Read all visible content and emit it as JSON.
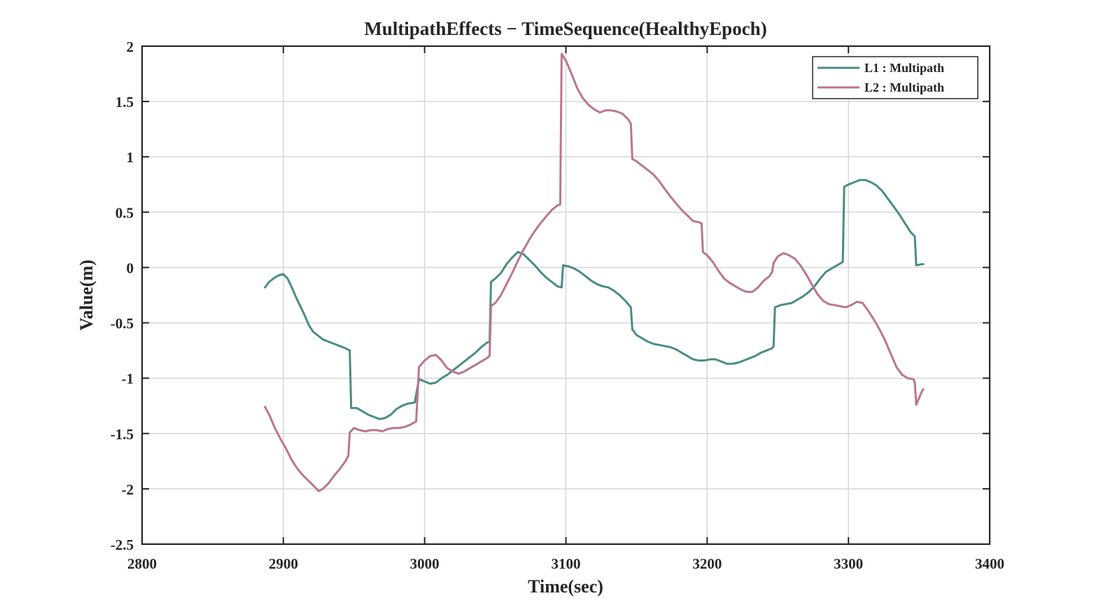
{
  "chart_data": {
    "type": "line",
    "title": "MultipathEffects − TimeSequence(HealthyEpoch)",
    "xlabel": "Time(sec)",
    "ylabel": "Value(m)",
    "xlim": [
      2800,
      3400
    ],
    "ylim": [
      -2.5,
      2
    ],
    "xticks": [
      2800,
      2900,
      3000,
      3100,
      3200,
      3300,
      3400
    ],
    "yticks": [
      -2.5,
      -2,
      -1.5,
      -1,
      -0.5,
      0,
      0.5,
      1,
      1.5,
      2
    ],
    "xtick_labels": [
      "2800",
      "2900",
      "3000",
      "3100",
      "3200",
      "3300",
      "3400"
    ],
    "ytick_labels": [
      "-2.5",
      "-2",
      "-1.5",
      "-1",
      "-0.5",
      "0",
      "0.5",
      "1",
      "1.5",
      "2"
    ],
    "grid": true,
    "legend_position": "top-right",
    "series": [
      {
        "name": "L1 : Multipath",
        "color": "#4a8c86",
        "points": [
          [
            2887,
            -0.18
          ],
          [
            2890,
            -0.13
          ],
          [
            2894,
            -0.09
          ],
          [
            2897,
            -0.07
          ],
          [
            2900,
            -0.06
          ],
          [
            2903,
            -0.1
          ],
          [
            2906,
            -0.18
          ],
          [
            2909,
            -0.27
          ],
          [
            2912,
            -0.35
          ],
          [
            2915,
            -0.43
          ],
          [
            2918,
            -0.52
          ],
          [
            2921,
            -0.58
          ],
          [
            2925,
            -0.62
          ],
          [
            2928,
            -0.65
          ],
          [
            2932,
            -0.67
          ],
          [
            2936,
            -0.69
          ],
          [
            2940,
            -0.71
          ],
          [
            2944,
            -0.73
          ],
          [
            2947,
            -0.75
          ],
          [
            2948,
            -1.27
          ],
          [
            2952,
            -1.27
          ],
          [
            2956,
            -1.3
          ],
          [
            2960,
            -1.33
          ],
          [
            2964,
            -1.35
          ],
          [
            2968,
            -1.37
          ],
          [
            2972,
            -1.36
          ],
          [
            2976,
            -1.33
          ],
          [
            2980,
            -1.28
          ],
          [
            2984,
            -1.25
          ],
          [
            2988,
            -1.23
          ],
          [
            2993,
            -1.22
          ],
          [
            2996,
            -1.01
          ],
          [
            3000,
            -1.03
          ],
          [
            3004,
            -1.05
          ],
          [
            3008,
            -1.04
          ],
          [
            3012,
            -1.0
          ],
          [
            3016,
            -0.97
          ],
          [
            3020,
            -0.93
          ],
          [
            3024,
            -0.89
          ],
          [
            3028,
            -0.85
          ],
          [
            3032,
            -0.81
          ],
          [
            3036,
            -0.77
          ],
          [
            3040,
            -0.72
          ],
          [
            3044,
            -0.68
          ],
          [
            3046,
            -0.67
          ],
          [
            3047,
            -0.13
          ],
          [
            3050,
            -0.1
          ],
          [
            3054,
            -0.05
          ],
          [
            3058,
            0.03
          ],
          [
            3062,
            0.09
          ],
          [
            3066,
            0.14
          ],
          [
            3070,
            0.12
          ],
          [
            3074,
            0.07
          ],
          [
            3078,
            0.02
          ],
          [
            3082,
            -0.04
          ],
          [
            3086,
            -0.09
          ],
          [
            3090,
            -0.13
          ],
          [
            3094,
            -0.17
          ],
          [
            3097,
            -0.18
          ],
          [
            3098,
            0.02
          ],
          [
            3102,
            0.01
          ],
          [
            3106,
            -0.01
          ],
          [
            3110,
            -0.04
          ],
          [
            3114,
            -0.08
          ],
          [
            3118,
            -0.12
          ],
          [
            3122,
            -0.15
          ],
          [
            3126,
            -0.17
          ],
          [
            3130,
            -0.18
          ],
          [
            3134,
            -0.21
          ],
          [
            3138,
            -0.25
          ],
          [
            3142,
            -0.3
          ],
          [
            3146,
            -0.36
          ],
          [
            3147,
            -0.56
          ],
          [
            3150,
            -0.61
          ],
          [
            3154,
            -0.64
          ],
          [
            3158,
            -0.67
          ],
          [
            3162,
            -0.69
          ],
          [
            3166,
            -0.7
          ],
          [
            3170,
            -0.71
          ],
          [
            3174,
            -0.72
          ],
          [
            3178,
            -0.74
          ],
          [
            3182,
            -0.77
          ],
          [
            3186,
            -0.8
          ],
          [
            3190,
            -0.83
          ],
          [
            3194,
            -0.84
          ],
          [
            3198,
            -0.84
          ],
          [
            3202,
            -0.83
          ],
          [
            3206,
            -0.83
          ],
          [
            3210,
            -0.85
          ],
          [
            3214,
            -0.87
          ],
          [
            3218,
            -0.87
          ],
          [
            3222,
            -0.86
          ],
          [
            3226,
            -0.84
          ],
          [
            3230,
            -0.82
          ],
          [
            3234,
            -0.8
          ],
          [
            3238,
            -0.77
          ],
          [
            3242,
            -0.75
          ],
          [
            3246,
            -0.73
          ],
          [
            3247,
            -0.71
          ],
          [
            3248,
            -0.36
          ],
          [
            3252,
            -0.34
          ],
          [
            3256,
            -0.33
          ],
          [
            3260,
            -0.32
          ],
          [
            3264,
            -0.29
          ],
          [
            3268,
            -0.26
          ],
          [
            3272,
            -0.22
          ],
          [
            3276,
            -0.17
          ],
          [
            3280,
            -0.1
          ],
          [
            3284,
            -0.04
          ],
          [
            3288,
            -0.01
          ],
          [
            3292,
            0.02
          ],
          [
            3296,
            0.05
          ],
          [
            3297,
            0.73
          ],
          [
            3300,
            0.75
          ],
          [
            3304,
            0.77
          ],
          [
            3308,
            0.79
          ],
          [
            3312,
            0.79
          ],
          [
            3316,
            0.77
          ],
          [
            3320,
            0.74
          ],
          [
            3324,
            0.69
          ],
          [
            3328,
            0.62
          ],
          [
            3332,
            0.55
          ],
          [
            3336,
            0.48
          ],
          [
            3340,
            0.4
          ],
          [
            3344,
            0.32
          ],
          [
            3347,
            0.28
          ],
          [
            3348,
            0.02
          ],
          [
            3352,
            0.03
          ],
          [
            3353,
            0.03
          ]
        ]
      },
      {
        "name": "L2 : Multipath",
        "color": "#b97690",
        "points": [
          [
            2887,
            -1.26
          ],
          [
            2890,
            -1.33
          ],
          [
            2894,
            -1.45
          ],
          [
            2898,
            -1.55
          ],
          [
            2902,
            -1.64
          ],
          [
            2906,
            -1.74
          ],
          [
            2910,
            -1.82
          ],
          [
            2914,
            -1.88
          ],
          [
            2918,
            -1.93
          ],
          [
            2922,
            -1.98
          ],
          [
            2925,
            -2.02
          ],
          [
            2928,
            -2.0
          ],
          [
            2932,
            -1.95
          ],
          [
            2936,
            -1.88
          ],
          [
            2940,
            -1.82
          ],
          [
            2944,
            -1.75
          ],
          [
            2946,
            -1.7
          ],
          [
            2947,
            -1.49
          ],
          [
            2950,
            -1.45
          ],
          [
            2954,
            -1.47
          ],
          [
            2958,
            -1.48
          ],
          [
            2962,
            -1.47
          ],
          [
            2966,
            -1.47
          ],
          [
            2970,
            -1.48
          ],
          [
            2974,
            -1.46
          ],
          [
            2978,
            -1.45
          ],
          [
            2982,
            -1.45
          ],
          [
            2986,
            -1.44
          ],
          [
            2990,
            -1.42
          ],
          [
            2994,
            -1.39
          ],
          [
            2996,
            -0.9
          ],
          [
            3000,
            -0.84
          ],
          [
            3004,
            -0.8
          ],
          [
            3008,
            -0.79
          ],
          [
            3012,
            -0.84
          ],
          [
            3016,
            -0.91
          ],
          [
            3020,
            -0.94
          ],
          [
            3024,
            -0.96
          ],
          [
            3028,
            -0.94
          ],
          [
            3032,
            -0.91
          ],
          [
            3036,
            -0.88
          ],
          [
            3040,
            -0.85
          ],
          [
            3044,
            -0.82
          ],
          [
            3046,
            -0.8
          ],
          [
            3047,
            -0.35
          ],
          [
            3050,
            -0.32
          ],
          [
            3054,
            -0.25
          ],
          [
            3058,
            -0.15
          ],
          [
            3062,
            -0.05
          ],
          [
            3066,
            0.06
          ],
          [
            3070,
            0.16
          ],
          [
            3074,
            0.25
          ],
          [
            3078,
            0.33
          ],
          [
            3082,
            0.4
          ],
          [
            3086,
            0.46
          ],
          [
            3090,
            0.52
          ],
          [
            3094,
            0.56
          ],
          [
            3096,
            0.57
          ],
          [
            3097,
            1.93
          ],
          [
            3100,
            1.87
          ],
          [
            3104,
            1.75
          ],
          [
            3108,
            1.62
          ],
          [
            3112,
            1.53
          ],
          [
            3116,
            1.47
          ],
          [
            3120,
            1.43
          ],
          [
            3124,
            1.4
          ],
          [
            3128,
            1.42
          ],
          [
            3132,
            1.42
          ],
          [
            3136,
            1.41
          ],
          [
            3140,
            1.39
          ],
          [
            3144,
            1.34
          ],
          [
            3146,
            1.3
          ],
          [
            3147,
            0.98
          ],
          [
            3150,
            0.96
          ],
          [
            3154,
            0.92
          ],
          [
            3158,
            0.88
          ],
          [
            3162,
            0.84
          ],
          [
            3166,
            0.78
          ],
          [
            3170,
            0.71
          ],
          [
            3174,
            0.64
          ],
          [
            3178,
            0.58
          ],
          [
            3182,
            0.52
          ],
          [
            3186,
            0.47
          ],
          [
            3190,
            0.42
          ],
          [
            3194,
            0.41
          ],
          [
            3196,
            0.4
          ],
          [
            3197,
            0.14
          ],
          [
            3200,
            0.11
          ],
          [
            3204,
            0.05
          ],
          [
            3208,
            -0.03
          ],
          [
            3212,
            -0.1
          ],
          [
            3216,
            -0.14
          ],
          [
            3220,
            -0.17
          ],
          [
            3224,
            -0.2
          ],
          [
            3228,
            -0.22
          ],
          [
            3232,
            -0.22
          ],
          [
            3236,
            -0.18
          ],
          [
            3240,
            -0.12
          ],
          [
            3244,
            -0.08
          ],
          [
            3246,
            -0.04
          ],
          [
            3247,
            0.04
          ],
          [
            3250,
            0.1
          ],
          [
            3254,
            0.13
          ],
          [
            3258,
            0.11
          ],
          [
            3262,
            0.08
          ],
          [
            3266,
            0.02
          ],
          [
            3270,
            -0.06
          ],
          [
            3274,
            -0.15
          ],
          [
            3278,
            -0.24
          ],
          [
            3282,
            -0.3
          ],
          [
            3286,
            -0.33
          ],
          [
            3290,
            -0.34
          ],
          [
            3294,
            -0.35
          ],
          [
            3298,
            -0.36
          ],
          [
            3302,
            -0.34
          ],
          [
            3306,
            -0.31
          ],
          [
            3310,
            -0.32
          ],
          [
            3314,
            -0.39
          ],
          [
            3318,
            -0.47
          ],
          [
            3322,
            -0.56
          ],
          [
            3326,
            -0.66
          ],
          [
            3330,
            -0.78
          ],
          [
            3334,
            -0.9
          ],
          [
            3338,
            -0.97
          ],
          [
            3342,
            -1.0
          ],
          [
            3346,
            -1.01
          ],
          [
            3347,
            -1.04
          ],
          [
            3348,
            -1.24
          ],
          [
            3350,
            -1.18
          ],
          [
            3352,
            -1.12
          ],
          [
            3353,
            -1.1
          ]
        ]
      }
    ]
  }
}
